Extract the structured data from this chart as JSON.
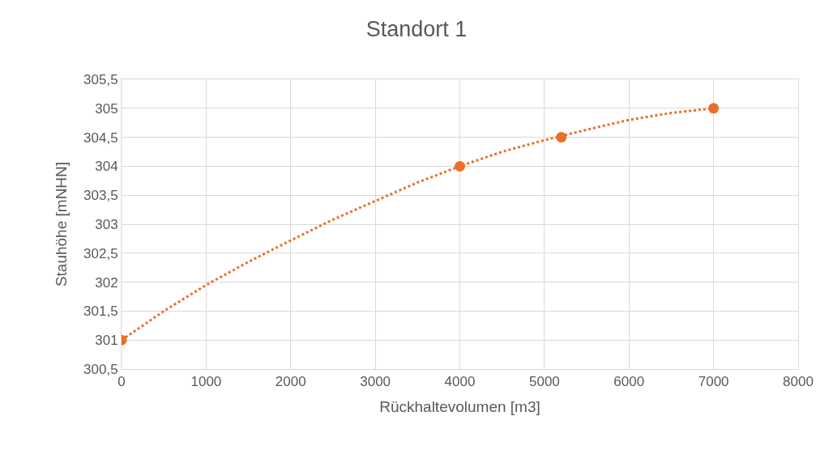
{
  "chart_data": {
    "type": "scatter",
    "title": "Standort 1",
    "xlabel": "Rückhaltevolumen [m3]",
    "ylabel": "Stauhöhe [mNHN]",
    "series": [
      {
        "marker": "circle",
        "color": "#e8702a",
        "x": [
          0,
          4000,
          5200,
          7000
        ],
        "values": [
          301,
          304,
          304.5,
          305
        ]
      },
      {
        "type": "line",
        "marker": "none",
        "line_style": "dotted",
        "color": "#e8702a",
        "x": [
          0,
          500,
          1000,
          1500,
          2000,
          2500,
          3000,
          3500,
          4000,
          4500,
          5000,
          5500,
          6000,
          6500,
          7000
        ],
        "values": [
          301,
          301.5,
          301.95,
          302.35,
          302.72,
          303.08,
          303.4,
          303.72,
          304.0,
          304.25,
          304.45,
          304.63,
          304.8,
          304.92,
          305.0
        ]
      }
    ],
    "xlim": [
      0,
      8000
    ],
    "xticks": [
      0,
      1000,
      2000,
      3000,
      4000,
      5000,
      6000,
      7000,
      8000
    ],
    "ylim": [
      300.5,
      305.5
    ],
    "yticks": [
      {
        "value": 300.5,
        "label": "300,5"
      },
      301,
      {
        "value": 301.5,
        "label": "301,5"
      },
      302,
      {
        "value": 302.5,
        "label": "302,5"
      },
      303,
      {
        "value": 303.5,
        "label": "303,5"
      },
      304,
      {
        "value": 304.5,
        "label": "304,5"
      },
      305,
      {
        "value": 305.5,
        "label": "305,5"
      }
    ],
    "grid": true
  }
}
